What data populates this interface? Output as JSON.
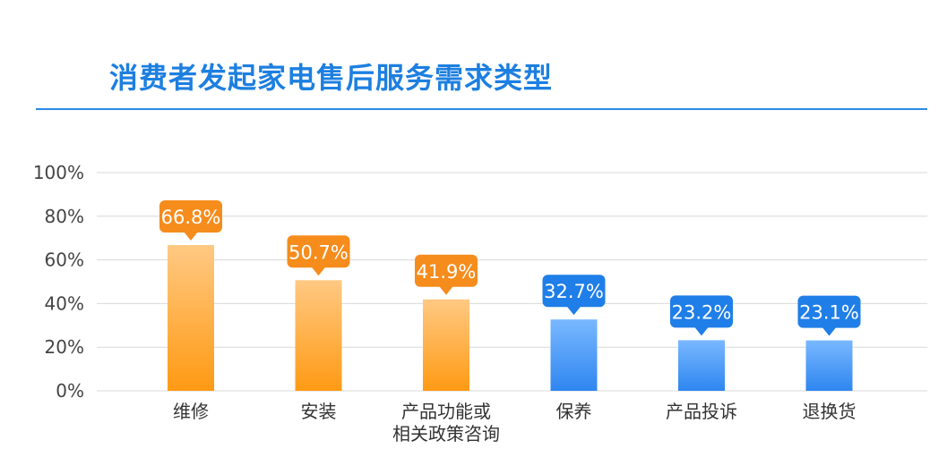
{
  "chart_data": {
    "type": "bar",
    "title": "消费者发起家电售后服务需求类型",
    "categories": [
      [
        "维修"
      ],
      [
        "安装"
      ],
      [
        "产品功能或",
        "相关政策咨询"
      ],
      [
        "保养"
      ],
      [
        "产品投诉"
      ],
      [
        "退换货"
      ]
    ],
    "values": [
      66.8,
      50.7,
      41.9,
      32.7,
      23.2,
      23.1
    ],
    "data_labels": [
      "66.8%",
      "50.7%",
      "41.9%",
      "32.7%",
      "23.2%",
      "23.1%"
    ],
    "bar_styles": [
      "orange",
      "orange",
      "orange",
      "blue",
      "blue",
      "blue"
    ],
    "ylim": [
      0,
      100
    ],
    "yticks": [
      0,
      20,
      40,
      60,
      80,
      100
    ],
    "ytick_labels": [
      "0%",
      "20%",
      "40%",
      "60%",
      "80%",
      "100%"
    ],
    "grid": true,
    "legend": "none",
    "colors": {
      "title": "#1d7fe0",
      "title_rule": "#2b8be6",
      "grid": "#d9d9d9",
      "orange_top": "#ffc983",
      "orange_bottom": "#ff9a14",
      "orange_label": "#f58c1c",
      "blue_top": "#79b8ff",
      "blue_bottom": "#2e86f0",
      "blue_label": "#1f7ee8"
    }
  }
}
